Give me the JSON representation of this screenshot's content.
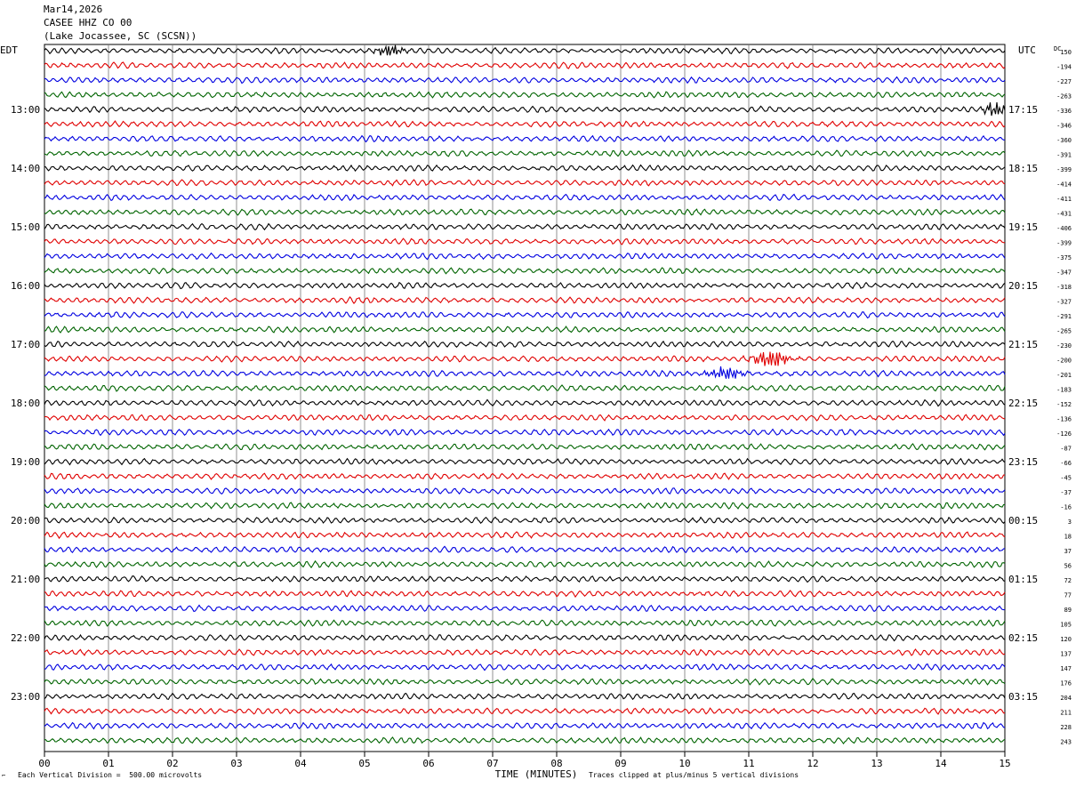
{
  "header": {
    "date": "Mar14,2026",
    "station": "CASEE HHZ CO 00",
    "location": "(Lake Jocassee, SC (SCSN))"
  },
  "left_zone": "EDT",
  "right_zone": "UTC",
  "dc_label": "DC",
  "footer": {
    "scale_note": "Each Vertical Division =  500.00 microvolts",
    "clip_note": "Traces clipped at plus/minus 5 vertical divisions"
  },
  "chart_data": {
    "type": "line",
    "xlabel": "TIME (MINUTES)",
    "x_ticks": [
      "00",
      "01",
      "02",
      "03",
      "04",
      "05",
      "06",
      "07",
      "08",
      "09",
      "10",
      "11",
      "12",
      "13",
      "14",
      "15"
    ],
    "xlim": [
      0,
      15
    ],
    "traces_per_hour": 4,
    "trace_minutes": 15,
    "trace_colors": [
      "#000000",
      "#e00000",
      "#0000e0",
      "#006400"
    ],
    "left_hour_labels": [
      "13:00",
      "14:00",
      "15:00",
      "16:00",
      "17:00",
      "18:00",
      "19:00",
      "20:00",
      "21:00",
      "22:00",
      "23:00"
    ],
    "right_hour_labels": [
      "17:15",
      "18:15",
      "19:15",
      "20:15",
      "21:15",
      "22:15",
      "23:15",
      "00:15",
      "01:15",
      "02:15",
      "03:15"
    ],
    "dc_offsets": [
      "150",
      "-194",
      "-227",
      "-263",
      "-336",
      "-346",
      "-360",
      "-391",
      "-399",
      "-414",
      "-411",
      "-431",
      "-406",
      "-399",
      "-375",
      "-347",
      "-318",
      "-327",
      "-291",
      "-265",
      "-230",
      "-200",
      "-201",
      "-183",
      "-152",
      "-136",
      "-126",
      "-87",
      "-66",
      "-45",
      "-37",
      "-16",
      "3",
      "18",
      "37",
      "56",
      "72",
      "77",
      "89",
      "105",
      "120",
      "137",
      "147",
      "176",
      "204",
      "211",
      "228",
      "243"
    ],
    "events": [
      {
        "trace": 21,
        "minute": 11.35,
        "amp": 1.6,
        "width": 0.25
      },
      {
        "trace": 22,
        "minute": 10.65,
        "amp": 1.1,
        "width": 0.25
      },
      {
        "trace": 4,
        "minute": 14.85,
        "amp": 1.4,
        "width": 0.15
      },
      {
        "trace": 0,
        "minute": 5.4,
        "amp": 1.0,
        "width": 0.2
      }
    ]
  }
}
